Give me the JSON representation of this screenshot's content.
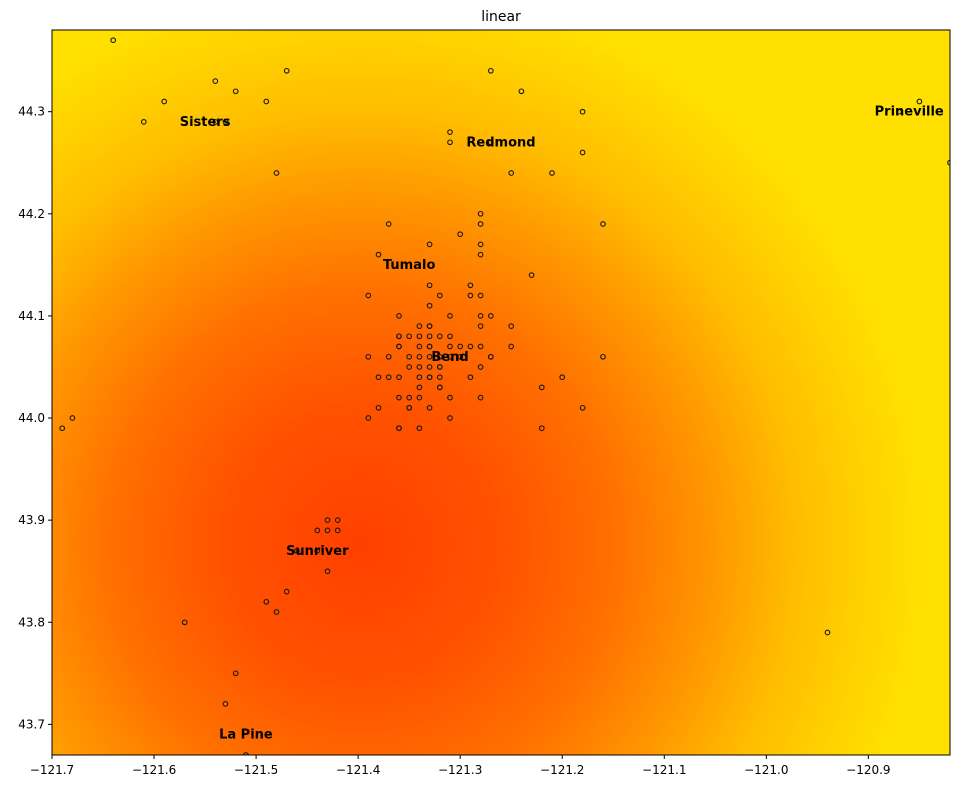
{
  "chart_data": {
    "type": "heatmap",
    "title": "linear",
    "xlabel": "",
    "ylabel": "",
    "xlim": [
      -121.7,
      -120.82
    ],
    "ylim": [
      43.67,
      44.38
    ],
    "grid": false,
    "legend": "none",
    "x_ticks": [
      -121.7,
      -121.6,
      -121.5,
      -121.4,
      -121.3,
      -121.2,
      -121.1,
      -121.0,
      -120.9
    ],
    "x_tick_labels": [
      "−121.7",
      "−121.6",
      "−121.5",
      "−121.4",
      "−121.3",
      "−121.2",
      "−121.1",
      "−121.0",
      "−120.9"
    ],
    "y_ticks": [
      43.7,
      43.8,
      43.9,
      44.0,
      44.1,
      44.2,
      44.3
    ],
    "y_tick_labels": [
      "43.7",
      "43.8",
      "43.9",
      "44.0",
      "44.1",
      "44.2",
      "44.3"
    ],
    "colormap": {
      "high": "#ffe000",
      "mid": "#ff8c00",
      "low": "#ff4000",
      "marker_edge": "#1a1a1a"
    },
    "field_minimum": {
      "x": -121.37,
      "y": 43.89
    },
    "cities": [
      {
        "name": "Sisters",
        "x": -121.55,
        "y": 44.29
      },
      {
        "name": "Redmond",
        "x": -121.26,
        "y": 44.27
      },
      {
        "name": "Prineville",
        "x": -120.86,
        "y": 44.3
      },
      {
        "name": "Tumalo",
        "x": -121.35,
        "y": 44.15
      },
      {
        "name": "Bend",
        "x": -121.31,
        "y": 44.06
      },
      {
        "name": "Sunriver",
        "x": -121.44,
        "y": 43.87
      },
      {
        "name": "La Pine",
        "x": -121.51,
        "y": 43.69
      }
    ],
    "points": [
      [
        -121.64,
        44.37
      ],
      [
        -121.47,
        44.34
      ],
      [
        -121.27,
        44.34
      ],
      [
        -121.24,
        44.32
      ],
      [
        -121.54,
        44.33
      ],
      [
        -121.52,
        44.32
      ],
      [
        -121.49,
        44.31
      ],
      [
        -121.59,
        44.31
      ],
      [
        -121.61,
        44.29
      ],
      [
        -121.54,
        44.29
      ],
      [
        -121.53,
        44.29
      ],
      [
        -121.18,
        44.3
      ],
      [
        -121.31,
        44.28
      ],
      [
        -121.31,
        44.27
      ],
      [
        -121.27,
        44.27
      ],
      [
        -120.85,
        44.31
      ],
      [
        -120.87,
        44.3
      ],
      [
        -120.82,
        44.25
      ],
      [
        -121.18,
        44.26
      ],
      [
        -121.21,
        44.24
      ],
      [
        -121.25,
        44.24
      ],
      [
        -121.48,
        44.24
      ],
      [
        -121.28,
        44.2
      ],
      [
        -121.28,
        44.19
      ],
      [
        -121.37,
        44.19
      ],
      [
        -121.3,
        44.18
      ],
      [
        -121.16,
        44.19
      ],
      [
        -121.33,
        44.17
      ],
      [
        -121.28,
        44.17
      ],
      [
        -121.28,
        44.16
      ],
      [
        -121.38,
        44.16
      ],
      [
        -121.23,
        44.14
      ],
      [
        -121.33,
        44.13
      ],
      [
        -121.29,
        44.13
      ],
      [
        -121.32,
        44.12
      ],
      [
        -121.39,
        44.12
      ],
      [
        -121.28,
        44.12
      ],
      [
        -121.29,
        44.12
      ],
      [
        -121.33,
        44.11
      ],
      [
        -121.36,
        44.1
      ],
      [
        -121.28,
        44.1
      ],
      [
        -121.27,
        44.1
      ],
      [
        -121.31,
        44.1
      ],
      [
        -121.25,
        44.09
      ],
      [
        -121.34,
        44.09
      ],
      [
        -121.33,
        44.09
      ],
      [
        -121.28,
        44.09
      ],
      [
        -121.33,
        44.09
      ],
      [
        -121.34,
        44.08
      ],
      [
        -121.32,
        44.08
      ],
      [
        -121.33,
        44.08
      ],
      [
        -121.31,
        44.08
      ],
      [
        -121.36,
        44.08
      ],
      [
        -121.36,
        44.08
      ],
      [
        -121.35,
        44.08
      ],
      [
        -121.33,
        44.07
      ],
      [
        -121.36,
        44.07
      ],
      [
        -121.34,
        44.07
      ],
      [
        -121.31,
        44.07
      ],
      [
        -121.3,
        44.07
      ],
      [
        -121.29,
        44.07
      ],
      [
        -121.28,
        44.07
      ],
      [
        -121.25,
        44.07
      ],
      [
        -121.36,
        44.07
      ],
      [
        -121.33,
        44.07
      ],
      [
        -121.32,
        44.06
      ],
      [
        -121.35,
        44.06
      ],
      [
        -121.34,
        44.06
      ],
      [
        -121.31,
        44.06
      ],
      [
        -121.3,
        44.06
      ],
      [
        -121.27,
        44.06
      ],
      [
        -121.37,
        44.06
      ],
      [
        -121.16,
        44.06
      ],
      [
        -121.33,
        44.06
      ],
      [
        -121.39,
        44.06
      ],
      [
        -121.34,
        44.05
      ],
      [
        -121.32,
        44.05
      ],
      [
        -121.33,
        44.05
      ],
      [
        -121.27,
        44.06
      ],
      [
        -121.35,
        44.05
      ],
      [
        -121.32,
        44.05
      ],
      [
        -121.28,
        44.05
      ],
      [
        -121.29,
        44.04
      ],
      [
        -121.33,
        44.04
      ],
      [
        -121.38,
        44.04
      ],
      [
        -121.36,
        44.04
      ],
      [
        -121.37,
        44.04
      ],
      [
        -121.34,
        44.04
      ],
      [
        -121.32,
        44.04
      ],
      [
        -121.33,
        44.04
      ],
      [
        -121.2,
        44.04
      ],
      [
        -121.34,
        44.03
      ],
      [
        -121.32,
        44.03
      ],
      [
        -121.22,
        44.03
      ],
      [
        -121.32,
        44.03
      ],
      [
        -121.28,
        44.02
      ],
      [
        -121.36,
        44.02
      ],
      [
        -121.34,
        44.02
      ],
      [
        -121.31,
        44.02
      ],
      [
        -121.35,
        44.02
      ],
      [
        -121.35,
        44.01
      ],
      [
        -121.33,
        44.01
      ],
      [
        -121.35,
        44.01
      ],
      [
        -121.18,
        44.01
      ],
      [
        -121.38,
        44.01
      ],
      [
        -121.31,
        44.0
      ],
      [
        -121.68,
        44.0
      ],
      [
        -121.39,
        44.0
      ],
      [
        -121.36,
        43.99
      ],
      [
        -121.69,
        43.99
      ],
      [
        -121.36,
        43.99
      ],
      [
        -121.34,
        43.99
      ],
      [
        -121.22,
        43.99
      ],
      [
        -121.43,
        43.9
      ],
      [
        -121.42,
        43.9
      ],
      [
        -121.44,
        43.89
      ],
      [
        -121.43,
        43.89
      ],
      [
        -121.42,
        43.89
      ],
      [
        -121.44,
        43.87
      ],
      [
        -121.46,
        43.87
      ],
      [
        -121.43,
        43.85
      ],
      [
        -121.47,
        43.83
      ],
      [
        -121.49,
        43.82
      ],
      [
        -121.48,
        43.81
      ],
      [
        -121.57,
        43.8
      ],
      [
        -120.94,
        43.79
      ],
      [
        -121.52,
        43.75
      ],
      [
        -121.53,
        43.72
      ],
      [
        -121.51,
        43.67
      ]
    ]
  }
}
